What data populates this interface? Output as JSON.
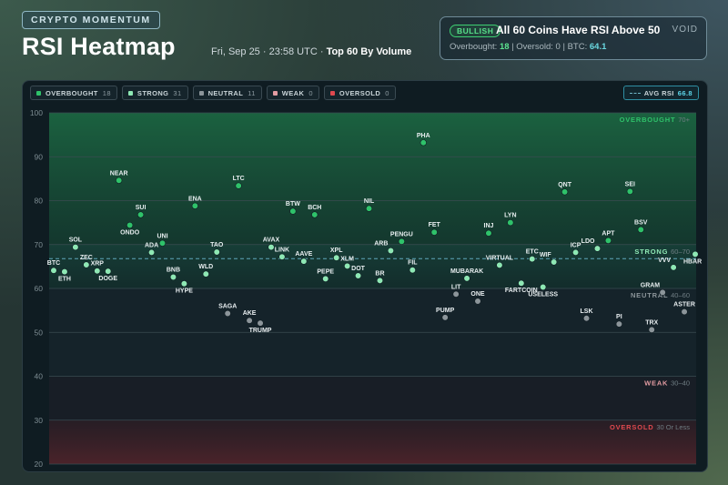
{
  "header": {
    "badge": "CRYPTO MOMENTUM",
    "title": "RSI Heatmap",
    "datetime": "Fri, Sep 25 · 23:58 UTC",
    "separator": " · ",
    "scope": "Top 60 By Volume"
  },
  "status": {
    "badge": "BULLISH",
    "headline": "All 60 Coins Have RSI Above 50",
    "logo": "VOID",
    "overbought_label": "Overbought:",
    "overbought_value": "18",
    "oversold_text": "| Oversold: 0 | BTC:",
    "btc_value": "64.1"
  },
  "legend": [
    {
      "label": "OVERBOUGHT",
      "count": "18",
      "color": "#2fc26a"
    },
    {
      "label": "STRONG",
      "count": "31",
      "color": "#8ee8b4"
    },
    {
      "label": "NEUTRAL",
      "count": "11",
      "color": "#8c959a"
    },
    {
      "label": "WEAK",
      "count": "0",
      "color": "#e39ca2"
    },
    {
      "label": "OVERSOLD",
      "count": "0",
      "color": "#e0494f"
    }
  ],
  "avg_rsi": {
    "label": "AVG RSI",
    "value": "66.8"
  },
  "colors": {
    "overbought": "#2fc26a",
    "strong": "#8ee8b4",
    "neutral": "#8c959a",
    "weak": "#e39ca2",
    "oversold": "#e0494f",
    "avg_line": "#5ea7bb",
    "accent": "#5ed6ea"
  },
  "chart_data": {
    "type": "scatter",
    "title": "RSI Heatmap",
    "ylabel": "",
    "xlabel": "",
    "ylim": [
      20,
      100
    ],
    "yticks": [
      20,
      30,
      40,
      50,
      60,
      70,
      80,
      90,
      100
    ],
    "average": 66.8,
    "zones": [
      {
        "name": "OVERBOUGHT",
        "range_label": "70+",
        "from": 70,
        "to": 100
      },
      {
        "name": "STRONG",
        "range_label": "60–70",
        "from": 60,
        "to": 70
      },
      {
        "name": "NEUTRAL",
        "range_label": "40–60",
        "from": 40,
        "to": 60
      },
      {
        "name": "WEAK",
        "range_label": "30–40",
        "from": 30,
        "to": 40
      },
      {
        "name": "OVERSOLD",
        "range_label": "30 Or Less",
        "from": 20,
        "to": 30
      }
    ],
    "points": [
      {
        "label": "BTC",
        "x": 1,
        "y": 64.1,
        "zone": "strong"
      },
      {
        "label": "ETH",
        "x": 2,
        "y": 63.8,
        "zone": "strong"
      },
      {
        "label": "SOL",
        "x": 3,
        "y": 69.4,
        "zone": "strong"
      },
      {
        "label": "ZEC",
        "x": 4,
        "y": 65.4,
        "zone": "strong"
      },
      {
        "label": "XRP",
        "x": 5,
        "y": 64.0,
        "zone": "strong"
      },
      {
        "label": "DOGE",
        "x": 6,
        "y": 63.9,
        "zone": "strong"
      },
      {
        "label": "NEAR",
        "x": 7,
        "y": 84.6,
        "zone": "overbought"
      },
      {
        "label": "ONDO",
        "x": 8,
        "y": 74.4,
        "zone": "overbought"
      },
      {
        "label": "SUI",
        "x": 9,
        "y": 76.8,
        "zone": "overbought"
      },
      {
        "label": "ADA",
        "x": 10,
        "y": 68.2,
        "zone": "strong"
      },
      {
        "label": "UNI",
        "x": 11,
        "y": 70.3,
        "zone": "overbought"
      },
      {
        "label": "BNB",
        "x": 12,
        "y": 62.6,
        "zone": "strong"
      },
      {
        "label": "HYPE",
        "x": 13,
        "y": 61.1,
        "zone": "strong"
      },
      {
        "label": "ENA",
        "x": 14,
        "y": 78.8,
        "zone": "overbought"
      },
      {
        "label": "WLD",
        "x": 15,
        "y": 63.3,
        "zone": "strong"
      },
      {
        "label": "TAO",
        "x": 16,
        "y": 68.3,
        "zone": "strong"
      },
      {
        "label": "SAGA",
        "x": 17,
        "y": 54.3,
        "zone": "neutral"
      },
      {
        "label": "LTC",
        "x": 18,
        "y": 83.4,
        "zone": "overbought"
      },
      {
        "label": "AKE",
        "x": 19,
        "y": 52.7,
        "zone": "neutral"
      },
      {
        "label": "TRUMP",
        "x": 20,
        "y": 52.1,
        "zone": "neutral"
      },
      {
        "label": "AVAX",
        "x": 21,
        "y": 69.4,
        "zone": "strong"
      },
      {
        "label": "LINK",
        "x": 22,
        "y": 67.2,
        "zone": "strong"
      },
      {
        "label": "BTW",
        "x": 23,
        "y": 77.6,
        "zone": "overbought"
      },
      {
        "label": "AAVE",
        "x": 24,
        "y": 66.2,
        "zone": "strong"
      },
      {
        "label": "BCH",
        "x": 25,
        "y": 76.8,
        "zone": "overbought"
      },
      {
        "label": "PEPE",
        "x": 26,
        "y": 62.2,
        "zone": "strong"
      },
      {
        "label": "XPL",
        "x": 27,
        "y": 67.0,
        "zone": "strong"
      },
      {
        "label": "XLM",
        "x": 28,
        "y": 65.1,
        "zone": "strong"
      },
      {
        "label": "DOT",
        "x": 29,
        "y": 62.9,
        "zone": "strong"
      },
      {
        "label": "NIL",
        "x": 30,
        "y": 78.2,
        "zone": "overbought"
      },
      {
        "label": "BR",
        "x": 31,
        "y": 61.8,
        "zone": "strong"
      },
      {
        "label": "ARB",
        "x": 32,
        "y": 68.6,
        "zone": "strong"
      },
      {
        "label": "PENGU",
        "x": 33,
        "y": 70.7,
        "zone": "overbought"
      },
      {
        "label": "FIL",
        "x": 34,
        "y": 64.2,
        "zone": "strong"
      },
      {
        "label": "PHA",
        "x": 35,
        "y": 93.2,
        "zone": "overbought"
      },
      {
        "label": "FET",
        "x": 36,
        "y": 72.8,
        "zone": "overbought"
      },
      {
        "label": "PUMP",
        "x": 37,
        "y": 53.4,
        "zone": "neutral"
      },
      {
        "label": "LIT",
        "x": 38,
        "y": 58.7,
        "zone": "neutral"
      },
      {
        "label": "MUBARAK",
        "x": 39,
        "y": 62.3,
        "zone": "strong"
      },
      {
        "label": "ONE",
        "x": 40,
        "y": 57.1,
        "zone": "neutral"
      },
      {
        "label": "INJ",
        "x": 41,
        "y": 72.6,
        "zone": "overbought"
      },
      {
        "label": "VIRTUAL",
        "x": 42,
        "y": 65.3,
        "zone": "strong"
      },
      {
        "label": "LYN",
        "x": 43,
        "y": 75.0,
        "zone": "overbought"
      },
      {
        "label": "FARTCOIN",
        "x": 44,
        "y": 61.2,
        "zone": "strong"
      },
      {
        "label": "ETC",
        "x": 45,
        "y": 66.7,
        "zone": "strong"
      },
      {
        "label": "USELESS",
        "x": 46,
        "y": 60.3,
        "zone": "strong"
      },
      {
        "label": "WIF",
        "x": 47,
        "y": 66.0,
        "zone": "strong"
      },
      {
        "label": "QNT",
        "x": 48,
        "y": 82.0,
        "zone": "overbought"
      },
      {
        "label": "ICP",
        "x": 49,
        "y": 68.2,
        "zone": "strong"
      },
      {
        "label": "LSK",
        "x": 50,
        "y": 53.2,
        "zone": "neutral"
      },
      {
        "label": "LDO",
        "x": 51,
        "y": 69.1,
        "zone": "strong"
      },
      {
        "label": "APT",
        "x": 52,
        "y": 70.9,
        "zone": "overbought"
      },
      {
        "label": "PI",
        "x": 53,
        "y": 51.9,
        "zone": "neutral"
      },
      {
        "label": "SEI",
        "x": 54,
        "y": 82.1,
        "zone": "overbought"
      },
      {
        "label": "BSV",
        "x": 55,
        "y": 73.4,
        "zone": "overbought"
      },
      {
        "label": "TRX",
        "x": 56,
        "y": 50.6,
        "zone": "neutral"
      },
      {
        "label": "GRAM",
        "x": 57,
        "y": 59.1,
        "zone": "neutral"
      },
      {
        "label": "VVV",
        "x": 58,
        "y": 64.8,
        "zone": "strong"
      },
      {
        "label": "ASTER",
        "x": 59,
        "y": 54.7,
        "zone": "neutral"
      },
      {
        "label": "HBAR",
        "x": 60,
        "y": 67.8,
        "zone": "strong"
      }
    ]
  }
}
